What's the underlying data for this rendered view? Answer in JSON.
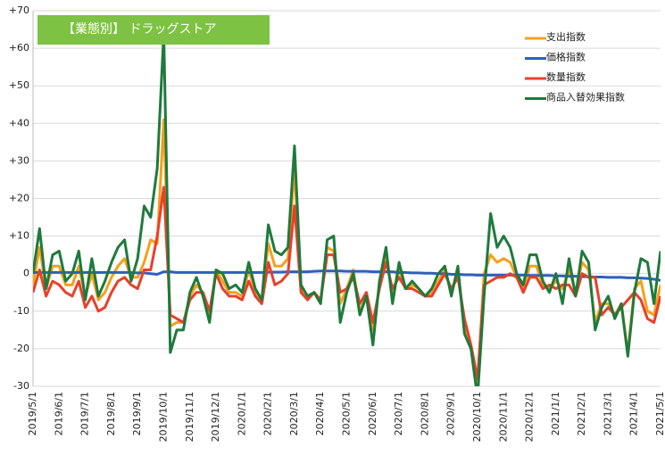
{
  "chart_data": {
    "type": "line",
    "title": "【業態別】 ドラッグストア",
    "categories": [
      "2019/5/1",
      null,
      null,
      null,
      "2019/6/1",
      null,
      null,
      null,
      "2019/7/1",
      null,
      null,
      null,
      "2019/8/1",
      null,
      null,
      null,
      "2019/9/1",
      null,
      null,
      null,
      "2019/10/1",
      null,
      null,
      null,
      "2019/11/1",
      null,
      null,
      null,
      "2019/12/1",
      null,
      null,
      null,
      "2020/1/1",
      null,
      null,
      null,
      "2020/2/1",
      null,
      null,
      null,
      "2020/3/1",
      null,
      null,
      null,
      "2020/4/1",
      null,
      null,
      null,
      "2020/5/1",
      null,
      null,
      null,
      "2020/6/1",
      null,
      null,
      null,
      "2020/7/1",
      null,
      null,
      null,
      "2020/8/1",
      null,
      null,
      null,
      "2020/9/1",
      null,
      null,
      null,
      "2020/10/1",
      null,
      null,
      null,
      "2020/11/1",
      null,
      null,
      null,
      "2020/12/1",
      null,
      null,
      null,
      "2021/1/1",
      null,
      null,
      null,
      "2021/2/1",
      null,
      null,
      null,
      "2021/3/1",
      null,
      null,
      null,
      "2021/4/1",
      null,
      null,
      null,
      "2021/5/1"
    ],
    "series": [
      {
        "name": "支出指数",
        "color": "#f5a01a",
        "values": [
          -3,
          7,
          -4,
          2,
          2,
          -3,
          -3,
          2,
          -6,
          0,
          -7,
          -5,
          -1,
          2,
          4,
          -1,
          -1,
          3,
          9,
          8,
          41,
          -14,
          -13,
          -13,
          -6,
          -3,
          -5,
          -11,
          1,
          -2,
          -5,
          -5,
          -6,
          1,
          -5,
          -7,
          8,
          2,
          2,
          4,
          28,
          -4,
          -6,
          -5,
          -7,
          7,
          6,
          -8,
          -4,
          1,
          -10,
          -6,
          -15,
          -3,
          5,
          -6,
          1,
          -4,
          -3,
          -4,
          -6,
          -5,
          -2,
          1,
          -5,
          1,
          -14,
          -20,
          -30,
          0,
          5,
          3,
          4,
          3,
          -1,
          -4,
          2,
          2,
          -3,
          -4,
          -2,
          -4,
          1,
          -5,
          3,
          1,
          -13,
          -8,
          -8,
          -11,
          -8,
          -21,
          -4,
          -2,
          -10,
          -11,
          -3
        ]
      },
      {
        "name": "価格指数",
        "color": "#2e5fbf",
        "values": [
          0.3,
          0.3,
          0.3,
          0.3,
          0.3,
          0.3,
          0.3,
          0.3,
          0.3,
          0.3,
          0.3,
          0.3,
          0.3,
          0.3,
          0.3,
          0.3,
          0.2,
          0.2,
          0,
          -0.2,
          0.5,
          0.5,
          0.3,
          0.3,
          0.3,
          0.3,
          0.3,
          0.3,
          0.3,
          0.3,
          0.3,
          0.3,
          0.3,
          0.3,
          0.3,
          0.3,
          0.4,
          0.4,
          0.4,
          0.5,
          0.5,
          0.5,
          0.5,
          0.6,
          0.7,
          0.7,
          0.7,
          0.7,
          0.6,
          0.6,
          0.6,
          0.6,
          0.5,
          0.5,
          0.5,
          0.5,
          0.3,
          0.3,
          0.2,
          0.2,
          0.1,
          0.1,
          0,
          0,
          -0.2,
          -0.2,
          -0.3,
          -0.3,
          -0.4,
          -0.4,
          -0.4,
          -0.4,
          -0.4,
          -0.4,
          -0.4,
          -0.4,
          -0.5,
          -0.5,
          -0.5,
          -0.5,
          -0.6,
          -0.6,
          -0.7,
          -0.7,
          -0.8,
          -0.8,
          -0.9,
          -0.9,
          -1,
          -1,
          -1,
          -1.1,
          -1.1,
          -1.2,
          -1.3,
          -1.5,
          -1.8
        ]
      },
      {
        "name": "数量指数",
        "color": "#e8402a",
        "values": [
          -5,
          1,
          -6,
          -2,
          -3,
          -5,
          -6,
          -2,
          -9,
          -6,
          -10,
          -9,
          -5,
          -2,
          -1,
          -3,
          -4,
          1,
          1,
          10,
          23,
          -11,
          -12,
          -13,
          -7,
          -5,
          -5,
          -10,
          0,
          -4,
          -6,
          -6,
          -7,
          -2,
          -6,
          -8,
          3,
          -3,
          -2,
          0,
          18,
          -5,
          -7,
          -5,
          -7,
          5,
          5,
          -5,
          -4,
          -1,
          -8,
          -5,
          -13,
          -4,
          3,
          -4,
          -1,
          -4,
          -4,
          -5,
          -6,
          -6,
          -3,
          0,
          -4,
          -1,
          -12,
          -19,
          -28,
          -3,
          -2,
          -1,
          -1,
          0,
          -1,
          -5,
          -1,
          -1,
          -4,
          -3,
          -4,
          -3,
          -3,
          -6,
          0,
          -1,
          -1,
          -11,
          -9,
          -11,
          -9,
          -7,
          -5,
          -7,
          -12,
          -13,
          -6
        ]
      },
      {
        "name": "商品入替効果指数",
        "color": "#1e7a3c",
        "values": [
          0,
          12,
          -4,
          5,
          6,
          -2,
          0,
          6,
          -7,
          4,
          -6,
          -2,
          3,
          7,
          9,
          -2,
          4,
          18,
          15,
          28,
          64,
          -21,
          -15,
          -15,
          -5,
          -1,
          -6,
          -13,
          1,
          0,
          -4,
          -3,
          -5,
          3,
          -4,
          -7,
          13,
          6,
          5,
          7,
          34,
          -3,
          -6,
          -5,
          -8,
          9,
          10,
          -13,
          -5,
          0,
          -11,
          -6,
          -19,
          -2,
          7,
          -8,
          3,
          -4,
          -2,
          -4,
          -6,
          -4,
          0,
          2,
          -6,
          2,
          -16,
          -20,
          -33,
          -6,
          16,
          7,
          10,
          7,
          0,
          -3,
          5,
          5,
          -2,
          -5,
          0,
          -8,
          4,
          -6,
          6,
          3,
          -15,
          -9,
          -6,
          -12,
          -8,
          -22,
          -5,
          4,
          3,
          -8,
          6
        ]
      }
    ],
    "ylim": [
      -30,
      70
    ],
    "yticks": [
      {
        "value": 70,
        "label": "+70"
      },
      {
        "value": 60,
        "label": "+60"
      },
      {
        "value": 50,
        "label": "+50"
      },
      {
        "value": 40,
        "label": "+40"
      },
      {
        "value": 30,
        "label": "+30"
      },
      {
        "value": 20,
        "label": "+20"
      },
      {
        "value": 10,
        "label": "+10"
      },
      0,
      -10,
      -20,
      -30
    ],
    "grid": true
  }
}
